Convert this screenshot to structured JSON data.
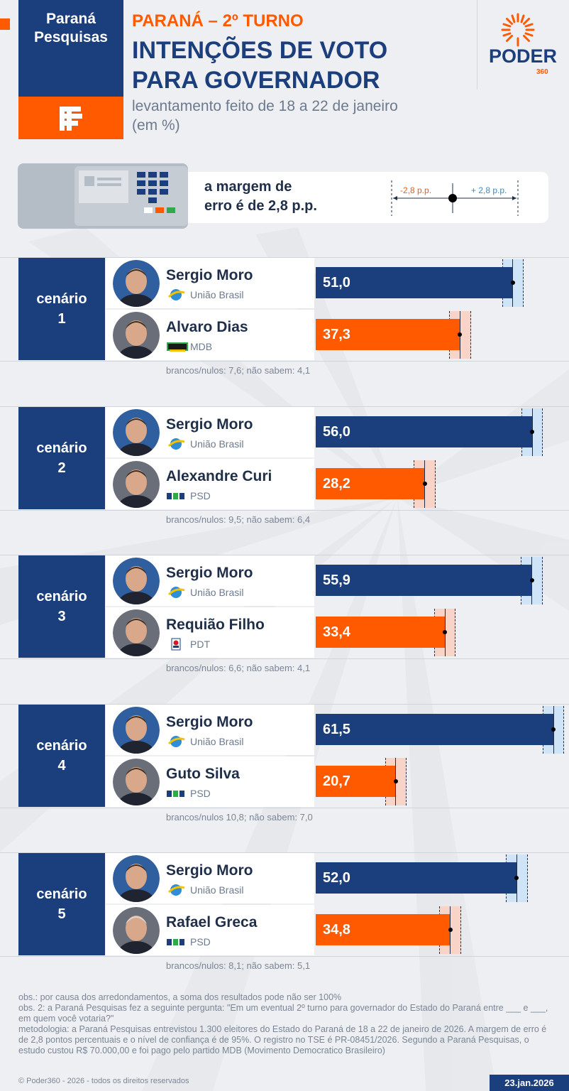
{
  "header": {
    "logo_line1": "Paraná",
    "logo_line2": "Pesquisas",
    "kicker": "PARANÁ – 2º TURNO",
    "title_line1": "INTENÇÕES DE VOTO",
    "title_line2": "PARA GOVERNADOR",
    "subtitle_line1": "levantamento feito de 18 a 22 de janeiro",
    "subtitle_line2": "(em %)",
    "brand_word": "PODER",
    "brand_number": "360"
  },
  "margin": {
    "text_line1": "a margem de",
    "text_line2": "erro é de 2,8 p.p.",
    "minus_label": "-2,8 p.p.",
    "plus_label": "+ 2,8 p.p."
  },
  "colors": {
    "navy": "#1b3e7c",
    "orange": "#ff5a00",
    "moro_margin": "#cfe4f6",
    "rival_margin": "#f7d3c8"
  },
  "chart_data": {
    "type": "bar",
    "unit": "%",
    "margin_of_error": 2.8,
    "scenarios": [
      {
        "label": "cenário",
        "number": "1",
        "candidates": [
          {
            "name": "Sergio Moro",
            "party": "União Brasil",
            "value": 51.0,
            "value_label": "51,0",
            "color": "navy"
          },
          {
            "name": "Alvaro Dias",
            "party": "MDB",
            "value": 37.3,
            "value_label": "37,3",
            "color": "orange"
          }
        ],
        "others": "brancos/nulos: 7,6; não sabem: 4,1"
      },
      {
        "label": "cenário",
        "number": "2",
        "candidates": [
          {
            "name": "Sergio Moro",
            "party": "União Brasil",
            "value": 56.0,
            "value_label": "56,0",
            "color": "navy"
          },
          {
            "name": "Alexandre Curi",
            "party": "PSD",
            "value": 28.2,
            "value_label": "28,2",
            "color": "orange"
          }
        ],
        "others": "brancos/nulos: 9,5; não sabem: 6,4"
      },
      {
        "label": "cenário",
        "number": "3",
        "candidates": [
          {
            "name": "Sergio Moro",
            "party": "União Brasil",
            "value": 55.9,
            "value_label": "55,9",
            "color": "navy"
          },
          {
            "name": "Requião Filho",
            "party": "PDT",
            "value": 33.4,
            "value_label": "33,4",
            "color": "orange"
          }
        ],
        "others": "brancos/nulos: 6,6; não sabem: 4,1"
      },
      {
        "label": "cenário",
        "number": "4",
        "candidates": [
          {
            "name": "Sergio Moro",
            "party": "União Brasil",
            "value": 61.5,
            "value_label": "61,5",
            "color": "navy"
          },
          {
            "name": "Guto Silva",
            "party": "PSD",
            "value": 20.7,
            "value_label": "20,7",
            "color": "orange"
          }
        ],
        "others": "brancos/nulos 10,8; não sabem: 7,0"
      },
      {
        "label": "cenário",
        "number": "5",
        "candidates": [
          {
            "name": "Sergio Moro",
            "party": "União Brasil",
            "value": 52.0,
            "value_label": "52,0",
            "color": "navy"
          },
          {
            "name": "Rafael Greca",
            "party": "PSD",
            "value": 34.8,
            "value_label": "34,8",
            "color": "orange"
          }
        ],
        "others": "brancos/nulos: 8,1; não sabem: 5,1"
      }
    ]
  },
  "footer": {
    "note1": "obs.: por causa dos arredondamentos, a soma dos resultados pode não ser 100%",
    "note2": "obs. 2: a Paraná Pesquisas fez a seguinte pergunta: \"Em um eventual 2º turno para governador do Estado do Paraná entre ___ e ___, em quem você votaria?\"",
    "note3": "metodologia: a Paraná Pesquisas entrevistou 1.300 eleitores do Estado do Paraná de 18 a 22 de janeiro de 2026. A margem de erro é de 2,8 pontos percentuais e o nível de confiança é de 95%. O registro no TSE é PR-08451/2026. Segundo a Paraná Pesquisas, o estudo custou R$ 70.000,00 e foi pago pelo partido MDB (Movimento Democratico Brasileiro)",
    "copyright": "© Poder360 - 2026 - todos os direitos reservados",
    "date": "23.jan.2026"
  }
}
